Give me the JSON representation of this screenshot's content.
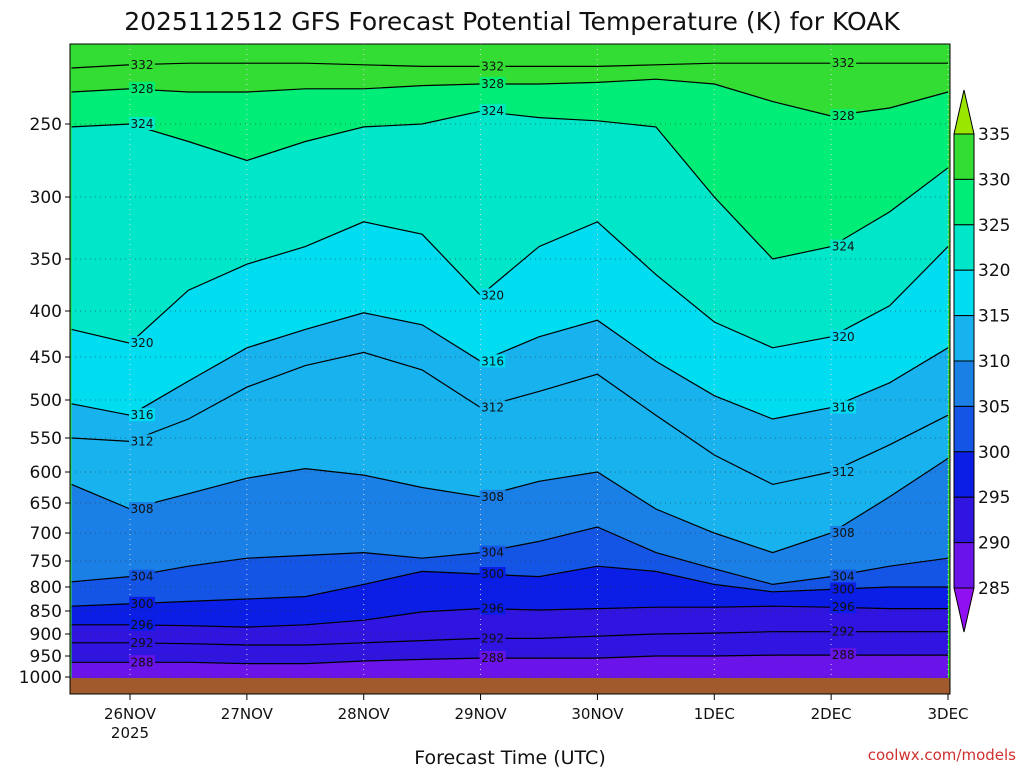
{
  "title": "2025112512 GFS Forecast Potential Temperature (K) for KOAK",
  "credit": "coolwx.com/models",
  "chart_data": {
    "type": "heatmap",
    "title": "2025112512 GFS Forecast Potential Temperature (K) for KOAK",
    "xlabel": "Forecast Time (UTC)",
    "ylabel": "",
    "x_ticks": [
      {
        "label": "26NOV",
        "sublabel": "2025",
        "t": 0
      },
      {
        "label": "27NOV",
        "sublabel": "",
        "t": 24
      },
      {
        "label": "28NOV",
        "sublabel": "",
        "t": 48
      },
      {
        "label": "29NOV",
        "sublabel": "",
        "t": 72
      },
      {
        "label": "30NOV",
        "sublabel": "",
        "t": 96
      },
      {
        "label": "1DEC",
        "sublabel": "",
        "t": 120
      },
      {
        "label": "2DEC",
        "sublabel": "",
        "t": 144
      },
      {
        "label": "3DEC",
        "sublabel": "",
        "t": 168
      }
    ],
    "x_range_hours": [
      -12,
      168
    ],
    "y_ticks": [
      250,
      300,
      350,
      400,
      450,
      500,
      550,
      600,
      650,
      700,
      750,
      800,
      850,
      900,
      950,
      1000
    ],
    "y_range_hpa": [
      200,
      1013
    ],
    "colorbar": {
      "ticks": [
        335,
        330,
        325,
        320,
        315,
        310,
        305,
        300,
        295,
        290,
        285
      ],
      "bands": [
        {
          "low": 335,
          "color": "#9be600"
        },
        {
          "low": 330,
          "color": "#33dd33"
        },
        {
          "low": 325,
          "color": "#00ee77"
        },
        {
          "low": 320,
          "color": "#00e6c8"
        },
        {
          "low": 315,
          "color": "#00dcf0"
        },
        {
          "low": 310,
          "color": "#18b2ee"
        },
        {
          "low": 305,
          "color": "#1a80e6"
        },
        {
          "low": 300,
          "color": "#1455e6"
        },
        {
          "low": 295,
          "color": "#0a1ee6"
        },
        {
          "low": 290,
          "color": "#3014e0"
        },
        {
          "low": 285,
          "color": "#6a14ea"
        },
        {
          "low": 280,
          "color": "#9010f2"
        }
      ]
    },
    "contour_levels": [
      288,
      292,
      296,
      300,
      304,
      308,
      312,
      316,
      320,
      324,
      328,
      332
    ],
    "isentrope_profiles_hpa": {
      "hours": [
        -12,
        0,
        12,
        24,
        36,
        48,
        60,
        72,
        84,
        96,
        108,
        120,
        132,
        144,
        156,
        168
      ],
      "series": [
        {
          "theta": 332,
          "p": [
            215,
            213,
            212,
            212,
            212,
            213,
            214,
            214,
            214,
            214,
            213,
            212,
            212,
            212,
            212,
            212
          ]
        },
        {
          "theta": 328,
          "p": [
            230,
            228,
            230,
            230,
            228,
            228,
            226,
            225,
            225,
            224,
            222,
            225,
            236,
            245,
            240,
            230
          ]
        },
        {
          "theta": 324,
          "p": [
            252,
            250,
            262,
            275,
            262,
            252,
            250,
            242,
            246,
            248,
            252,
            300,
            350,
            340,
            312,
            280
          ]
        },
        {
          "theta": 320,
          "p": [
            420,
            435,
            380,
            355,
            340,
            320,
            330,
            385,
            340,
            320,
            365,
            412,
            440,
            428,
            395,
            340
          ]
        },
        {
          "theta": 316,
          "p": [
            505,
            520,
            478,
            440,
            420,
            402,
            415,
            455,
            428,
            410,
            455,
            495,
            525,
            510,
            480,
            440
          ]
        },
        {
          "theta": 312,
          "p": [
            550,
            555,
            525,
            485,
            460,
            445,
            465,
            510,
            490,
            470,
            520,
            575,
            620,
            600,
            560,
            520
          ]
        },
        {
          "theta": 308,
          "p": [
            620,
            660,
            635,
            610,
            595,
            605,
            625,
            640,
            615,
            600,
            660,
            700,
            735,
            700,
            640,
            580
          ]
        },
        {
          "theta": 304,
          "p": [
            790,
            780,
            760,
            745,
            740,
            735,
            745,
            735,
            715,
            690,
            735,
            765,
            795,
            780,
            760,
            745
          ]
        },
        {
          "theta": 300,
          "p": [
            840,
            835,
            830,
            825,
            820,
            795,
            770,
            775,
            780,
            760,
            770,
            795,
            810,
            805,
            800,
            800
          ]
        },
        {
          "theta": 296,
          "p": [
            880,
            880,
            882,
            885,
            880,
            870,
            852,
            845,
            848,
            845,
            842,
            842,
            840,
            842,
            845,
            845
          ]
        },
        {
          "theta": 292,
          "p": [
            920,
            920,
            922,
            925,
            925,
            920,
            915,
            910,
            910,
            905,
            900,
            898,
            895,
            895,
            895,
            895
          ]
        },
        {
          "theta": 288,
          "p": [
            965,
            965,
            965,
            968,
            968,
            962,
            958,
            955,
            955,
            955,
            950,
            950,
            948,
            948,
            948,
            948
          ]
        }
      ]
    },
    "surface_band_color": "#a05a2c",
    "grid": true,
    "legend": "colorbar-right"
  }
}
